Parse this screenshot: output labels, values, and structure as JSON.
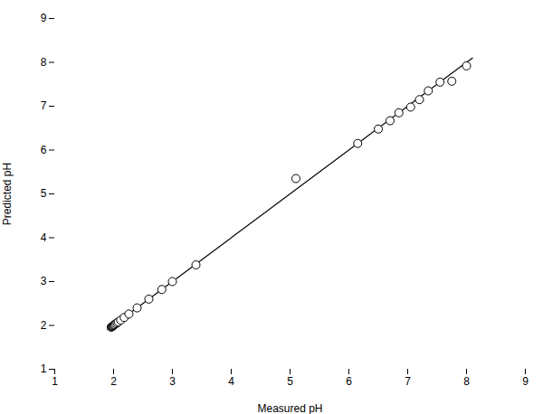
{
  "chart_data": {
    "type": "scatter",
    "xlabel": "Measured pH",
    "ylabel": "Predicted pH",
    "series": [
      {
        "type": "line",
        "color": "#000000",
        "line_style": "solid",
        "x": [
          1.9,
          8.1
        ],
        "values": [
          1.9,
          8.1
        ]
      },
      {
        "type": "scatter",
        "color": "#000000",
        "marker": "o",
        "x": [
          1.96,
          1.97,
          1.98,
          1.99,
          2.0,
          2.01,
          2.02,
          2.04,
          2.06,
          2.08,
          2.12,
          2.18,
          2.26,
          2.4,
          2.6,
          2.82,
          3.0,
          3.4,
          5.1,
          6.15,
          6.5,
          6.7,
          6.85,
          7.05,
          7.2,
          7.35,
          7.55,
          7.75,
          8.0
        ],
        "values": [
          1.96,
          1.97,
          1.98,
          1.99,
          2.0,
          2.01,
          2.02,
          2.04,
          2.06,
          2.08,
          2.12,
          2.18,
          2.26,
          2.4,
          2.6,
          2.82,
          3.0,
          3.38,
          5.35,
          6.15,
          6.48,
          6.67,
          6.85,
          6.98,
          7.15,
          7.35,
          7.55,
          7.57,
          7.92
        ]
      }
    ],
    "xlim": [
      1,
      9
    ],
    "ylim": [
      1,
      9
    ],
    "xticks": [
      1,
      2,
      3,
      4,
      5,
      6,
      7,
      8,
      9
    ],
    "yticks": [
      1,
      2,
      3,
      4,
      5,
      6,
      7,
      8,
      9
    ],
    "grid": false
  }
}
